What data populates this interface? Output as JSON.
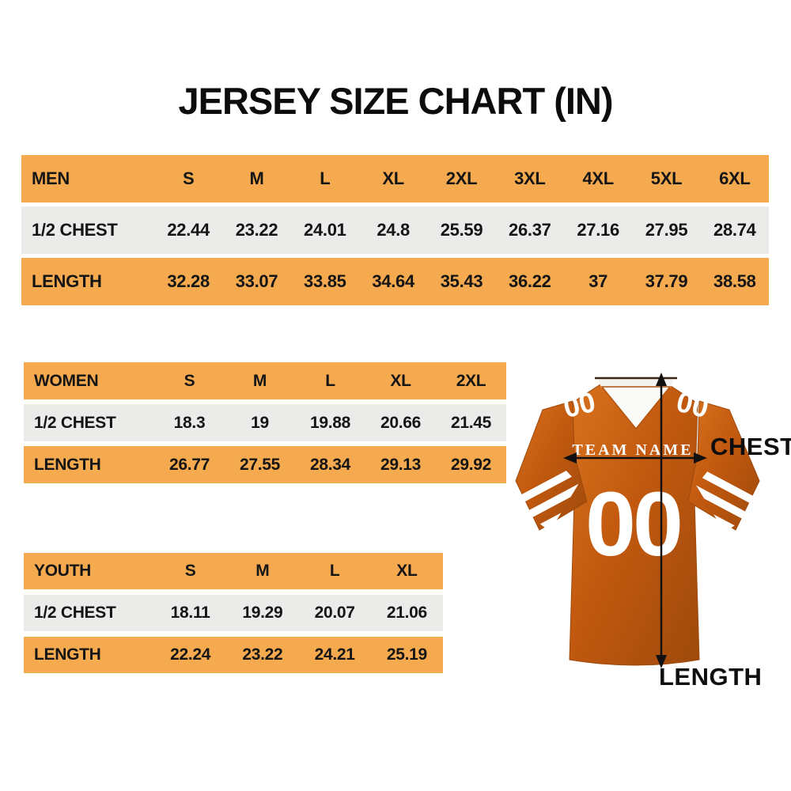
{
  "title": "JERSEY SIZE CHART (IN)",
  "units": "IN",
  "colors": {
    "header_orange": "#F6AA4F",
    "row_gray": "#EBEBE9",
    "jersey_orange": "#C2590F",
    "jersey_orange_dark": "#9E4A0C",
    "jersey_orange_light": "#D9731E"
  },
  "chart_data": [
    {
      "type": "table",
      "title": "MEN",
      "columns": [
        "S",
        "M",
        "L",
        "XL",
        "2XL",
        "3XL",
        "4XL",
        "5XL",
        "6XL"
      ],
      "rows": [
        {
          "label": "1/2 CHEST",
          "values": [
            22.44,
            23.22,
            24.01,
            24.8,
            25.59,
            26.37,
            27.16,
            27.95,
            28.74
          ]
        },
        {
          "label": "LENGTH",
          "values": [
            32.28,
            33.07,
            33.85,
            34.64,
            35.43,
            36.22,
            37,
            37.79,
            38.58
          ]
        }
      ]
    },
    {
      "type": "table",
      "title": "WOMEN",
      "columns": [
        "S",
        "M",
        "L",
        "XL",
        "2XL"
      ],
      "rows": [
        {
          "label": "1/2 CHEST",
          "values": [
            18.3,
            19,
            19.88,
            20.66,
            21.45
          ]
        },
        {
          "label": "LENGTH",
          "values": [
            26.77,
            27.55,
            28.34,
            29.13,
            29.92
          ]
        }
      ]
    },
    {
      "type": "table",
      "title": "YOUTH",
      "columns": [
        "S",
        "M",
        "L",
        "XL"
      ],
      "rows": [
        {
          "label": "1/2 CHEST",
          "values": [
            18.11,
            19.29,
            20.07,
            21.06
          ]
        },
        {
          "label": "LENGTH",
          "values": [
            22.24,
            23.22,
            24.21,
            25.19
          ]
        }
      ]
    }
  ],
  "jersey": {
    "team_name": "TEAM NAME",
    "number": "00",
    "chest_label": "CHEST",
    "length_label": "LENGTH"
  }
}
